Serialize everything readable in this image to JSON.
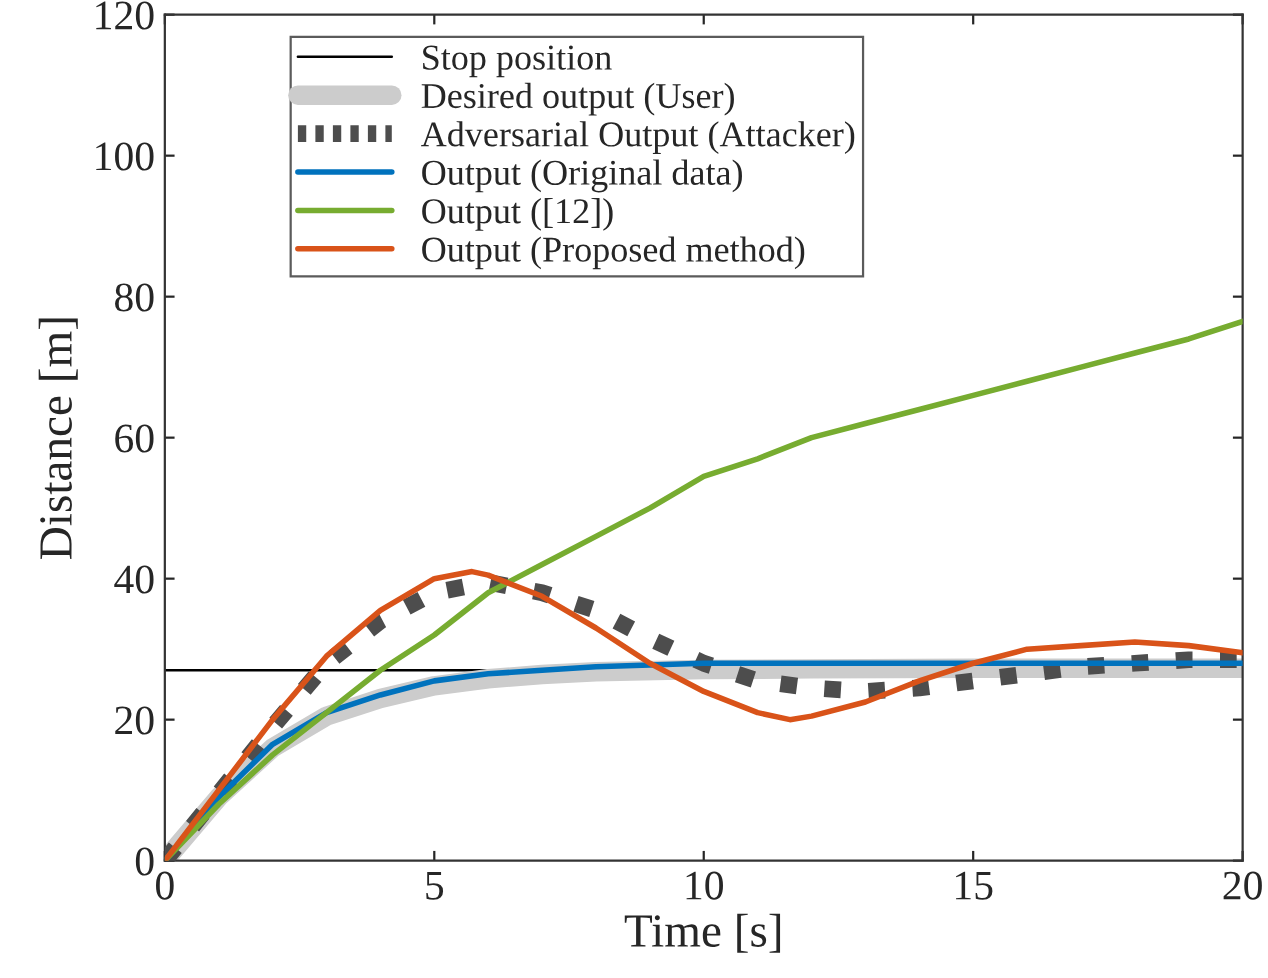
{
  "chart_data": {
    "type": "line",
    "xlabel": "Time [s]",
    "ylabel": "Distance [m]",
    "xlim": [
      0,
      20
    ],
    "ylim": [
      0,
      120
    ],
    "xticks": [
      0,
      5,
      10,
      15,
      20
    ],
    "yticks": [
      0,
      20,
      40,
      60,
      80,
      100,
      120
    ],
    "grid": false,
    "legend": "top left",
    "marker": "none",
    "ref_lines": [
      {
        "axis": "y",
        "value": 27,
        "label": "Stop position",
        "color": "#000000",
        "line_style": "solid"
      }
    ],
    "series": [
      {
        "name": "Desired output (User)",
        "color": "#cccccc",
        "line_style": "solid",
        "x": [
          0,
          1,
          2,
          3,
          4,
          5,
          6,
          7,
          8,
          10,
          12,
          15,
          20
        ],
        "values": [
          0,
          9,
          16,
          20.5,
          23,
          24.8,
          25.8,
          26.4,
          26.8,
          27.1,
          27.2,
          27.3,
          27.3
        ]
      },
      {
        "name": "Adversarial Output (Attacker)",
        "color": "#4d4d4d",
        "line_style": "dotted",
        "x": [
          0,
          1,
          2,
          3,
          4,
          5,
          6,
          7,
          8,
          9,
          10,
          11,
          12,
          13,
          14,
          15,
          16,
          17,
          18,
          19,
          20
        ],
        "values": [
          0,
          9.5,
          19,
          28,
          34,
          38,
          39.5,
          38,
          35.5,
          31.5,
          28,
          25.5,
          24.5,
          24,
          24.5,
          25.5,
          26.5,
          27.5,
          28,
          28.5,
          28.5
        ]
      },
      {
        "name": "Output (Original data)",
        "color": "#0072bd",
        "line_style": "solid",
        "x": [
          0,
          1,
          2,
          3,
          4,
          5,
          6,
          7,
          8,
          10,
          12,
          15,
          20
        ],
        "values": [
          0,
          9,
          16.5,
          21,
          23.5,
          25.5,
          26.5,
          27,
          27.5,
          28,
          28,
          28,
          28
        ]
      },
      {
        "name": "Output ([12])",
        "color": "#77ac30",
        "line_style": "solid",
        "x": [
          0,
          1,
          2,
          3,
          4,
          5,
          6,
          7,
          8,
          9,
          10,
          11,
          12,
          13,
          14,
          15,
          16,
          17,
          18,
          19,
          20
        ],
        "values": [
          0,
          8,
          15,
          21,
          27,
          32,
          38,
          42,
          46,
          50,
          54.5,
          57,
          60,
          62,
          64,
          66,
          68,
          70,
          72,
          74,
          76.5
        ]
      },
      {
        "name": "Output (Proposed method)",
        "color": "#d95319",
        "line_style": "solid",
        "x": [
          0,
          1,
          2,
          3,
          4,
          5,
          5.7,
          6,
          7,
          8,
          9,
          10,
          11,
          11.6,
          12,
          13,
          14,
          15,
          16,
          17,
          18,
          19,
          20
        ],
        "values": [
          0,
          10,
          20,
          29,
          35.5,
          40,
          41,
          40.5,
          37.5,
          33,
          28,
          24,
          21,
          20,
          20.5,
          22.5,
          25.5,
          28,
          30,
          30.5,
          31,
          30.5,
          29.5
        ]
      }
    ]
  }
}
